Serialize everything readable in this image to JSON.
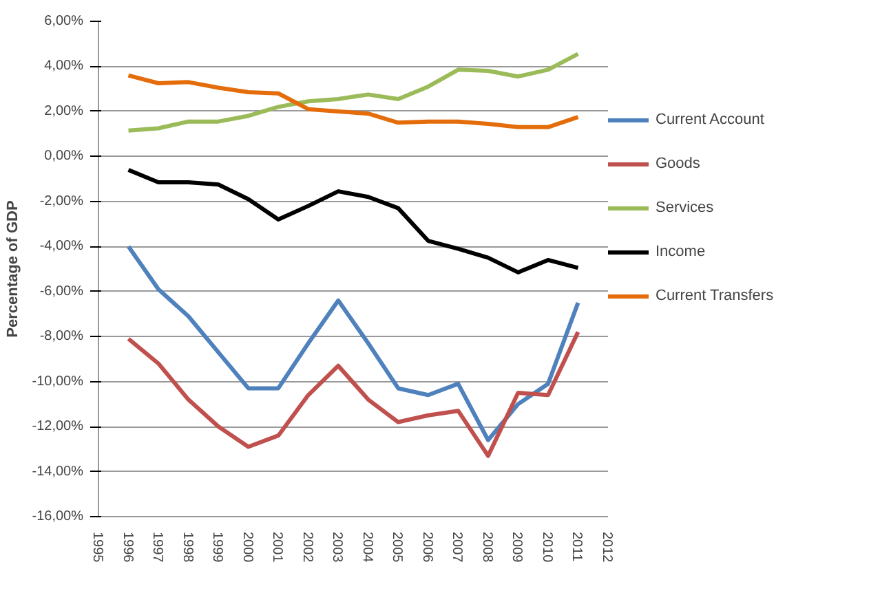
{
  "chart_data": {
    "type": "line",
    "ylabel": "Percentage of GDP",
    "x": [
      1996,
      1997,
      1998,
      1999,
      2000,
      2001,
      2002,
      2003,
      2004,
      2005,
      2006,
      2007,
      2008,
      2009,
      2010,
      2011
    ],
    "xlim": [
      1995,
      2012
    ],
    "xticks": [
      1995,
      1996,
      1997,
      1998,
      1999,
      2000,
      2001,
      2002,
      2003,
      2004,
      2005,
      2006,
      2007,
      2008,
      2009,
      2010,
      2011,
      2012
    ],
    "ylim": [
      -16,
      6
    ],
    "yticks": [
      {
        "value": 6,
        "label": "6,00%"
      },
      {
        "value": 4,
        "label": "4,00%"
      },
      {
        "value": 2,
        "label": "2,00%"
      },
      {
        "value": 0,
        "label": "0,00%"
      },
      {
        "value": -2,
        "label": "-2,00%"
      },
      {
        "value": -4,
        "label": "-4,00%"
      },
      {
        "value": -6,
        "label": "-6,00%"
      },
      {
        "value": -8,
        "label": "-8,00%"
      },
      {
        "value": -10,
        "label": "-10,00%"
      },
      {
        "value": -12,
        "label": "-12,00%"
      },
      {
        "value": -14,
        "label": "-14,00%"
      },
      {
        "value": -16,
        "label": "-16,00%"
      }
    ],
    "grid": "y",
    "legend": "right",
    "marker": "none",
    "line_style": "solid",
    "series": [
      {
        "name": "Current Account",
        "color": "#4f81bd",
        "values": [
          -4.0,
          -5.9,
          -7.1,
          -8.7,
          -10.3,
          -10.3,
          -8.3,
          -6.4,
          -8.3,
          -10.3,
          -10.6,
          -10.1,
          -12.6,
          -11.0,
          -10.1,
          -6.5
        ]
      },
      {
        "name": "Goods",
        "color": "#c0504d",
        "values": [
          -8.1,
          -9.2,
          -10.8,
          -12.0,
          -12.9,
          -12.4,
          -10.6,
          -9.3,
          -10.8,
          -11.8,
          -11.5,
          -11.3,
          -13.3,
          -10.5,
          -10.6,
          -7.8
        ]
      },
      {
        "name": "Services",
        "color": "#9bbb59",
        "values": [
          1.15,
          1.25,
          1.55,
          1.55,
          1.8,
          2.2,
          2.45,
          2.55,
          2.75,
          2.55,
          3.1,
          3.85,
          3.8,
          3.55,
          3.85,
          4.55
        ]
      },
      {
        "name": "Income",
        "color": "#000000",
        "values": [
          -0.6,
          -1.15,
          -1.15,
          -1.25,
          -1.9,
          -2.8,
          -2.2,
          -1.55,
          -1.8,
          -2.3,
          -3.75,
          -4.1,
          -4.5,
          -5.15,
          -4.6,
          -4.95
        ]
      },
      {
        "name": "Current Transfers",
        "color": "#e46c0a",
        "values": [
          3.6,
          3.25,
          3.3,
          3.05,
          2.85,
          2.8,
          2.1,
          2.0,
          1.9,
          1.5,
          1.55,
          1.55,
          1.45,
          1.3,
          1.3,
          1.75
        ]
      }
    ]
  }
}
